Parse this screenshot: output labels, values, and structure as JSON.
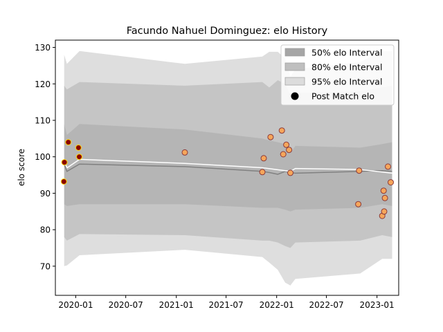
{
  "chart_data": {
    "type": "line",
    "title": "Facundo Nahuel Dominguez: elo History",
    "ylabel": "elo score",
    "xlabel": "",
    "xlim": [
      "2019-10-19",
      "2023-03-21"
    ],
    "ylim": [
      62,
      132
    ],
    "x_ticks": [
      "2020-01",
      "2020-07",
      "2021-01",
      "2021-07",
      "2022-01",
      "2022-07",
      "2023-01"
    ],
    "y_ticks": [
      70,
      80,
      90,
      100,
      110,
      120,
      130
    ],
    "grid": false,
    "legend_position": "top-right",
    "legend": [
      {
        "label": "50% elo Interval",
        "kind": "band",
        "color": "#a6a6a6"
      },
      {
        "label": "80% elo Interval",
        "kind": "band",
        "color": "#bfbfbf"
      },
      {
        "label": "95% elo Interval",
        "kind": "band",
        "color": "#dcdcdc"
      },
      {
        "label": "Post Match elo",
        "kind": "marker",
        "color": "#000000"
      }
    ],
    "bands": {
      "x": [
        "2019-11-20",
        "2019-11-30",
        "2020-01-15",
        "2021-02-01",
        "2021-11-10",
        "2021-12-05",
        "2022-01-05",
        "2022-02-01",
        "2022-02-20",
        "2022-03-10",
        "2022-11-01",
        "2023-01-20",
        "2023-02-25"
      ],
      "p95_upper": [
        128,
        125.5,
        129,
        125.5,
        127.5,
        128.8,
        128.8,
        127,
        122,
        124,
        126,
        129,
        129
      ],
      "p80_upper": [
        119.5,
        118.5,
        120.5,
        119.5,
        120.5,
        119,
        121,
        120,
        117,
        117.5,
        118,
        119,
        119.5
      ],
      "p50_upper": [
        109,
        106,
        109,
        107.5,
        105,
        104.5,
        104,
        103.5,
        101,
        103,
        102.5,
        103.5,
        104
      ],
      "mean": [
        98,
        96,
        98,
        97.3,
        96,
        95.7,
        95.2,
        96,
        95.7,
        95.5,
        96,
        96.2,
        96
      ],
      "p50_lower": [
        87,
        86.5,
        87,
        87,
        86,
        86,
        86,
        85.5,
        85,
        85.5,
        86,
        87,
        86.5
      ],
      "p80_lower": [
        78,
        77,
        78.8,
        78.5,
        77,
        77,
        76.5,
        75.5,
        75,
        76.5,
        77,
        78.5,
        78
      ],
      "p95_lower": [
        70,
        70.2,
        73,
        74.5,
        72.5,
        71,
        69,
        65.5,
        64.7,
        66.5,
        68,
        72,
        72
      ]
    },
    "white_line": {
      "x": [
        "2019-11-20",
        "2019-12-01",
        "2020-01-15",
        "2021-02-01",
        "2021-11-10",
        "2022-02-20",
        "2022-03-10",
        "2022-11-01",
        "2023-02-25"
      ],
      "y": [
        98.5,
        97,
        99.3,
        98.2,
        97,
        96,
        96.8,
        96.5,
        95.5
      ]
    },
    "points": {
      "x": [
        "2019-11-19",
        "2019-11-21",
        "2019-12-05",
        "2020-01-11",
        "2020-01-14",
        "2021-02-01",
        "2021-11-10",
        "2021-11-15",
        "2021-12-10",
        "2022-01-20",
        "2022-01-25",
        "2022-02-05",
        "2022-02-15",
        "2022-02-20",
        "2022-10-25",
        "2022-10-28",
        "2023-01-20",
        "2023-01-25",
        "2023-01-27",
        "2023-01-30",
        "2023-02-10",
        "2023-02-20"
      ],
      "y": [
        93.2,
        98.5,
        104,
        102.5,
        100,
        101.2,
        95.8,
        99.6,
        105.4,
        107.2,
        100.7,
        103.3,
        101.9,
        95.6,
        87,
        96.2,
        83.8,
        90.7,
        85,
        88.7,
        97.3,
        93
      ],
      "status": [
        "win",
        "win",
        "win",
        "win",
        "win",
        "loss",
        "loss",
        "loss",
        "loss",
        "loss",
        "loss",
        "loss",
        "loss",
        "loss",
        "loss",
        "loss",
        "loss",
        "loss",
        "loss",
        "loss",
        "loss",
        "loss"
      ]
    },
    "colors": {
      "win_face": "#8b0000",
      "win_edge": "#ffd700",
      "loss_face": "#f5a65b",
      "loss_edge": "#8b3a3a",
      "mean_line": "#808080",
      "white_line": "#ffffff"
    }
  }
}
